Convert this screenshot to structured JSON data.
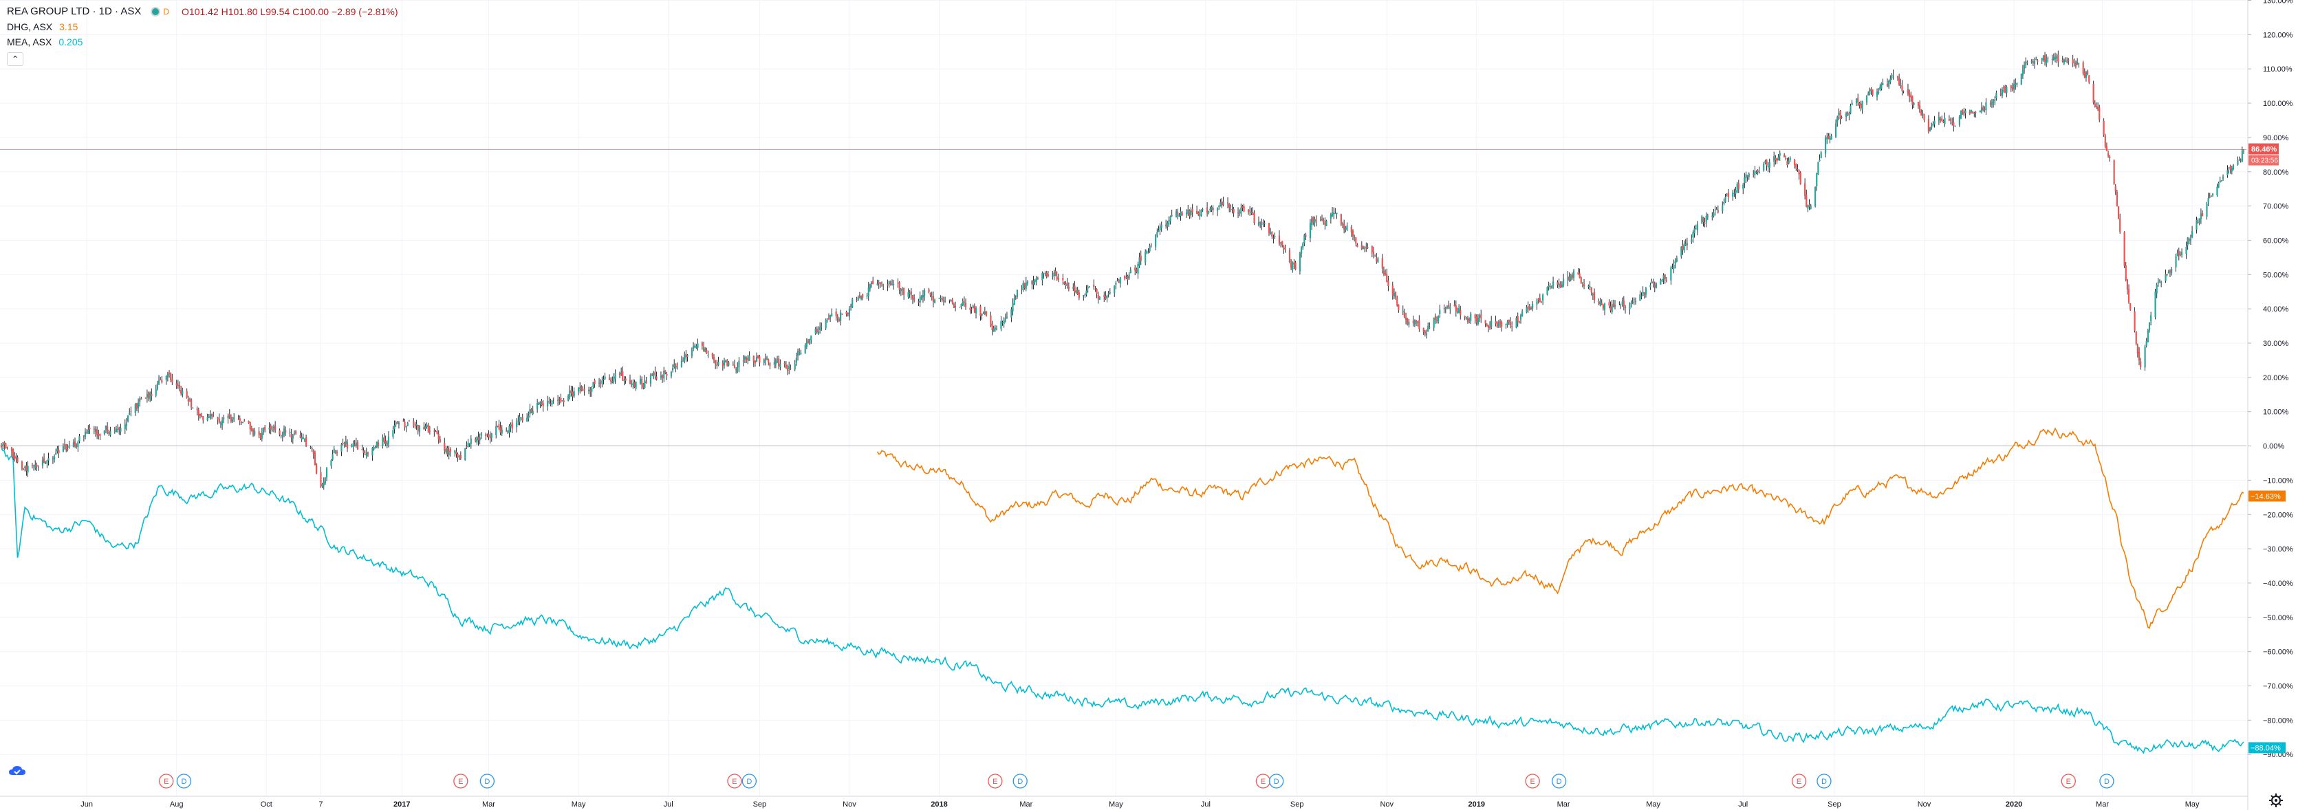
{
  "legend": {
    "main": {
      "title": "REA GROUP LTD · 1D · ASX",
      "badge": "D",
      "ohlc": "O101.42  H101.80  L99.54  C100.00  −2.89 (−2.81%)"
    },
    "series": [
      {
        "symbol": "DHG, ASX",
        "value": "3.15",
        "color": "#f57c00"
      },
      {
        "symbol": "MEA, ASX",
        "value": "0.205",
        "color": "#00bcd4"
      }
    ],
    "collapse_glyph": "⌃"
  },
  "colors": {
    "up": "#26a69a",
    "down": "#ef5350",
    "wick": "#131722",
    "orange": "#f57c00",
    "cyan": "#00bcd4",
    "price_line": "#ef5350",
    "grid": "#f0f3fa"
  },
  "chart_data": {
    "type": "line",
    "ylim": [
      -100,
      130
    ],
    "y_ticks": [
      {
        "value": 130,
        "label": "130.00%"
      },
      {
        "value": 120,
        "label": "120.00%"
      },
      {
        "value": 110,
        "label": "110.00%"
      },
      {
        "value": 100,
        "label": "100.00%"
      },
      {
        "value": 90,
        "label": "90.00%"
      },
      {
        "value": 80,
        "label": "80.00%"
      },
      {
        "value": 70,
        "label": "70.00%"
      },
      {
        "value": 60,
        "label": "60.00%"
      },
      {
        "value": 50,
        "label": "50.00%"
      },
      {
        "value": 40,
        "label": "40.00%"
      },
      {
        "value": 30,
        "label": "30.00%"
      },
      {
        "value": 20,
        "label": "20.00%"
      },
      {
        "value": 10,
        "label": "10.00%"
      },
      {
        "value": 0,
        "label": "0.00%"
      },
      {
        "value": -10,
        "label": "−10.00%"
      },
      {
        "value": -20,
        "label": "−20.00%"
      },
      {
        "value": -30,
        "label": "−30.00%"
      },
      {
        "value": -40,
        "label": "−40.00%"
      },
      {
        "value": -50,
        "label": "−50.00%"
      },
      {
        "value": -60,
        "label": "−60.00%"
      },
      {
        "value": -70,
        "label": "−70.00%"
      },
      {
        "value": -80,
        "label": "−80.00%"
      },
      {
        "value": -90,
        "label": "−90.00%"
      }
    ],
    "x_range": [
      "2016-04-04",
      "2020-06-05"
    ],
    "x_ticks": [
      {
        "date": "2016-06-01",
        "label": "Jun"
      },
      {
        "date": "2016-08-01",
        "label": "Aug"
      },
      {
        "date": "2016-10-01",
        "label": "Oct"
      },
      {
        "date": "2016-11-07",
        "label": "7"
      },
      {
        "date": "2017-01-01",
        "label": "2017"
      },
      {
        "date": "2017-03-01",
        "label": "Mar"
      },
      {
        "date": "2017-05-01",
        "label": "May"
      },
      {
        "date": "2017-07-01",
        "label": "Jul"
      },
      {
        "date": "2017-09-01",
        "label": "Sep"
      },
      {
        "date": "2017-11-01",
        "label": "Nov"
      },
      {
        "date": "2018-01-01",
        "label": "2018"
      },
      {
        "date": "2018-03-01",
        "label": "Mar"
      },
      {
        "date": "2018-05-01",
        "label": "May"
      },
      {
        "date": "2018-07-01",
        "label": "Jul"
      },
      {
        "date": "2018-09-01",
        "label": "Sep"
      },
      {
        "date": "2018-11-01",
        "label": "Nov"
      },
      {
        "date": "2019-01-01",
        "label": "2019"
      },
      {
        "date": "2019-03-01",
        "label": "Mar"
      },
      {
        "date": "2019-05-01",
        "label": "May"
      },
      {
        "date": "2019-07-01",
        "label": "Jul"
      },
      {
        "date": "2019-09-01",
        "label": "Sep"
      },
      {
        "date": "2019-11-01",
        "label": "Nov"
      },
      {
        "date": "2020-01-01",
        "label": "2020"
      },
      {
        "date": "2020-03-01",
        "label": "Mar"
      },
      {
        "date": "2020-05-01",
        "label": "May"
      }
    ],
    "main_series": {
      "name": "REA",
      "style": "candlestick",
      "points": [
        [
          "2016-04-04",
          0
        ],
        [
          "2016-04-25",
          -7
        ],
        [
          "2016-05-10",
          -3
        ],
        [
          "2016-06-01",
          3
        ],
        [
          "2016-06-20",
          5
        ],
        [
          "2016-07-10",
          13
        ],
        [
          "2016-07-29",
          20
        ],
        [
          "2016-08-10",
          12
        ],
        [
          "2016-09-01",
          7
        ],
        [
          "2016-09-25",
          4
        ],
        [
          "2016-10-15",
          5
        ],
        [
          "2016-11-01",
          -3
        ],
        [
          "2016-11-07",
          -10
        ],
        [
          "2016-11-20",
          0
        ],
        [
          "2016-12-10",
          -2
        ],
        [
          "2016-12-30",
          6
        ],
        [
          "2017-01-20",
          4
        ],
        [
          "2017-02-05",
          -3
        ],
        [
          "2017-02-25",
          3
        ],
        [
          "2017-03-20",
          7
        ],
        [
          "2017-04-10",
          13
        ],
        [
          "2017-05-01",
          17
        ],
        [
          "2017-05-20",
          20
        ],
        [
          "2017-06-10",
          18
        ],
        [
          "2017-07-01",
          22
        ],
        [
          "2017-07-20",
          29
        ],
        [
          "2017-08-10",
          24
        ],
        [
          "2017-08-25",
          26
        ],
        [
          "2017-09-20",
          23
        ],
        [
          "2017-10-10",
          33
        ],
        [
          "2017-10-30",
          40
        ],
        [
          "2017-11-20",
          48
        ],
        [
          "2017-12-10",
          45
        ],
        [
          "2018-01-05",
          43
        ],
        [
          "2018-01-25",
          40
        ],
        [
          "2018-02-10",
          34
        ],
        [
          "2018-02-25",
          46
        ],
        [
          "2018-03-15",
          50
        ],
        [
          "2018-04-05",
          45
        ],
        [
          "2018-04-25",
          44
        ],
        [
          "2018-05-15",
          53
        ],
        [
          "2018-06-05",
          65
        ],
        [
          "2018-06-25",
          68
        ],
        [
          "2018-07-15",
          72
        ],
        [
          "2018-08-01",
          66
        ],
        [
          "2018-08-20",
          60
        ],
        [
          "2018-08-31",
          52
        ],
        [
          "2018-09-10",
          65
        ],
        [
          "2018-09-25",
          68
        ],
        [
          "2018-10-10",
          60
        ],
        [
          "2018-10-25",
          55
        ],
        [
          "2018-11-10",
          40
        ],
        [
          "2018-11-25",
          33
        ],
        [
          "2018-12-10",
          40
        ],
        [
          "2018-12-25",
          38
        ],
        [
          "2019-01-10",
          36
        ],
        [
          "2019-01-25",
          36
        ],
        [
          "2019-02-10",
          42
        ],
        [
          "2019-02-25",
          47
        ],
        [
          "2019-03-10",
          51
        ],
        [
          "2019-03-25",
          42
        ],
        [
          "2019-04-10",
          40
        ],
        [
          "2019-04-25",
          45
        ],
        [
          "2019-05-10",
          50
        ],
        [
          "2019-05-25",
          60
        ],
        [
          "2019-06-10",
          68
        ],
        [
          "2019-06-25",
          75
        ],
        [
          "2019-07-10",
          80
        ],
        [
          "2019-07-25",
          85
        ],
        [
          "2019-08-05",
          82
        ],
        [
          "2019-08-15",
          68
        ],
        [
          "2019-08-25",
          90
        ],
        [
          "2019-09-10",
          98
        ],
        [
          "2019-09-25",
          102
        ],
        [
          "2019-10-10",
          106
        ],
        [
          "2019-10-25",
          100
        ],
        [
          "2019-11-05",
          92
        ],
        [
          "2019-11-20",
          95
        ],
        [
          "2019-12-05",
          98
        ],
        [
          "2019-12-25",
          103
        ],
        [
          "2020-01-10",
          110
        ],
        [
          "2020-01-25",
          112
        ],
        [
          "2020-02-10",
          113
        ],
        [
          "2020-02-20",
          108
        ],
        [
          "2020-03-01",
          92
        ],
        [
          "2020-03-10",
          75
        ],
        [
          "2020-03-20",
          40
        ],
        [
          "2020-03-27",
          22
        ],
        [
          "2020-04-05",
          45
        ],
        [
          "2020-04-20",
          55
        ],
        [
          "2020-05-05",
          65
        ],
        [
          "2020-05-20",
          78
        ],
        [
          "2020-06-05",
          86.46
        ]
      ]
    },
    "series": [
      {
        "name": "DHG",
        "color": "#f57c00",
        "last_label": "−14.63%",
        "points": [
          [
            "2017-11-20",
            -2
          ],
          [
            "2017-12-10",
            -6
          ],
          [
            "2018-01-05",
            -8
          ],
          [
            "2018-01-20",
            -12
          ],
          [
            "2018-02-05",
            -22
          ],
          [
            "2018-02-20",
            -18
          ],
          [
            "2018-03-10",
            -17
          ],
          [
            "2018-03-25",
            -14
          ],
          [
            "2018-04-10",
            -17
          ],
          [
            "2018-04-25",
            -14
          ],
          [
            "2018-05-10",
            -16
          ],
          [
            "2018-05-25",
            -10
          ],
          [
            "2018-06-10",
            -13
          ],
          [
            "2018-06-25",
            -14
          ],
          [
            "2018-07-10",
            -13
          ],
          [
            "2018-07-25",
            -15
          ],
          [
            "2018-08-10",
            -10
          ],
          [
            "2018-08-25",
            -6
          ],
          [
            "2018-09-10",
            -5
          ],
          [
            "2018-09-25",
            -4
          ],
          [
            "2018-10-10",
            -6
          ],
          [
            "2018-10-25",
            -18
          ],
          [
            "2018-11-10",
            -30
          ],
          [
            "2018-11-25",
            -34
          ],
          [
            "2018-12-10",
            -33
          ],
          [
            "2018-12-25",
            -35
          ],
          [
            "2019-01-10",
            -40
          ],
          [
            "2019-01-25",
            -40
          ],
          [
            "2019-02-10",
            -38
          ],
          [
            "2019-02-25",
            -42
          ],
          [
            "2019-03-10",
            -30
          ],
          [
            "2019-03-25",
            -27
          ],
          [
            "2019-04-10",
            -30
          ],
          [
            "2019-04-25",
            -25
          ],
          [
            "2019-05-10",
            -20
          ],
          [
            "2019-05-25",
            -15
          ],
          [
            "2019-06-10",
            -13
          ],
          [
            "2019-06-25",
            -12
          ],
          [
            "2019-07-10",
            -14
          ],
          [
            "2019-07-25",
            -16
          ],
          [
            "2019-08-10",
            -20
          ],
          [
            "2019-08-25",
            -22
          ],
          [
            "2019-09-10",
            -14
          ],
          [
            "2019-09-25",
            -13
          ],
          [
            "2019-10-10",
            -10
          ],
          [
            "2019-10-25",
            -12
          ],
          [
            "2019-11-10",
            -14
          ],
          [
            "2019-11-25",
            -10
          ],
          [
            "2019-12-10",
            -5
          ],
          [
            "2019-12-25",
            -3
          ],
          [
            "2020-01-10",
            2
          ],
          [
            "2020-01-25",
            5
          ],
          [
            "2020-02-10",
            3
          ],
          [
            "2020-02-25",
            0
          ],
          [
            "2020-03-10",
            -20
          ],
          [
            "2020-03-20",
            -40
          ],
          [
            "2020-04-01",
            -52
          ],
          [
            "2020-04-15",
            -45
          ],
          [
            "2020-05-01",
            -35
          ],
          [
            "2020-05-15",
            -25
          ],
          [
            "2020-06-05",
            -14.63
          ]
        ]
      },
      {
        "name": "MEA",
        "color": "#00bcd4",
        "last_label": "−88.04%",
        "points": [
          [
            "2016-04-04",
            0
          ],
          [
            "2016-04-12",
            -5
          ],
          [
            "2016-04-15",
            -34
          ],
          [
            "2016-04-20",
            -18
          ],
          [
            "2016-05-10",
            -25
          ],
          [
            "2016-06-01",
            -22
          ],
          [
            "2016-06-20",
            -30
          ],
          [
            "2016-07-05",
            -28
          ],
          [
            "2016-07-20",
            -12
          ],
          [
            "2016-08-10",
            -15
          ],
          [
            "2016-09-01",
            -13
          ],
          [
            "2016-09-20",
            -12
          ],
          [
            "2016-10-10",
            -15
          ],
          [
            "2016-11-01",
            -22
          ],
          [
            "2016-11-20",
            -30
          ],
          [
            "2016-12-10",
            -33
          ],
          [
            "2017-01-01",
            -37
          ],
          [
            "2017-01-20",
            -40
          ],
          [
            "2017-02-10",
            -50
          ],
          [
            "2017-03-01",
            -53
          ],
          [
            "2017-03-20",
            -51
          ],
          [
            "2017-04-10",
            -51
          ],
          [
            "2017-05-01",
            -55
          ],
          [
            "2017-05-20",
            -57
          ],
          [
            "2017-06-10",
            -58
          ],
          [
            "2017-07-01",
            -55
          ],
          [
            "2017-07-20",
            -48
          ],
          [
            "2017-08-10",
            -42
          ],
          [
            "2017-08-25",
            -48
          ],
          [
            "2017-09-10",
            -52
          ],
          [
            "2017-10-01",
            -56
          ],
          [
            "2017-10-25",
            -58
          ],
          [
            "2017-11-20",
            -60
          ],
          [
            "2017-12-20",
            -62
          ],
          [
            "2018-01-20",
            -64
          ],
          [
            "2018-02-10",
            -70
          ],
          [
            "2018-03-10",
            -72
          ],
          [
            "2018-04-10",
            -74
          ],
          [
            "2018-05-10",
            -76
          ],
          [
            "2018-06-10",
            -74
          ],
          [
            "2018-07-01",
            -73
          ],
          [
            "2018-08-01",
            -74
          ],
          [
            "2018-09-01",
            -72
          ],
          [
            "2018-10-01",
            -74
          ],
          [
            "2018-11-01",
            -76
          ],
          [
            "2018-12-01",
            -78
          ],
          [
            "2019-01-01",
            -80
          ],
          [
            "2019-02-01",
            -81
          ],
          [
            "2019-03-01",
            -81
          ],
          [
            "2019-04-01",
            -83
          ],
          [
            "2019-05-01",
            -82
          ],
          [
            "2019-06-01",
            -80
          ],
          [
            "2019-07-01",
            -82
          ],
          [
            "2019-08-01",
            -85
          ],
          [
            "2019-09-01",
            -84
          ],
          [
            "2019-10-01",
            -83
          ],
          [
            "2019-11-01",
            -82
          ],
          [
            "2019-12-01",
            -75
          ],
          [
            "2020-01-01",
            -76
          ],
          [
            "2020-02-01",
            -77
          ],
          [
            "2020-02-20",
            -78
          ],
          [
            "2020-03-10",
            -86
          ],
          [
            "2020-03-25",
            -89
          ],
          [
            "2020-04-15",
            -87
          ],
          [
            "2020-05-10",
            -88
          ],
          [
            "2020-06-05",
            -88.04
          ]
        ]
      }
    ],
    "price_line": {
      "value": 86.46,
      "label": "86.46%",
      "sub_label": "03:23:56"
    },
    "events": [
      {
        "date": "2016-07-25",
        "label": "E"
      },
      {
        "date": "2016-08-06",
        "label": "D"
      },
      {
        "date": "2017-02-10",
        "label": "E"
      },
      {
        "date": "2017-02-28",
        "label": "D"
      },
      {
        "date": "2017-08-15",
        "label": "E"
      },
      {
        "date": "2017-08-25",
        "label": "D"
      },
      {
        "date": "2018-02-08",
        "label": "E"
      },
      {
        "date": "2018-02-25",
        "label": "D"
      },
      {
        "date": "2018-08-09",
        "label": "E"
      },
      {
        "date": "2018-08-18",
        "label": "D"
      },
      {
        "date": "2019-02-08",
        "label": "E"
      },
      {
        "date": "2019-02-26",
        "label": "D"
      },
      {
        "date": "2019-08-08",
        "label": "E"
      },
      {
        "date": "2019-08-25",
        "label": "D"
      },
      {
        "date": "2020-02-07",
        "label": "E"
      },
      {
        "date": "2020-03-04",
        "label": "D"
      }
    ]
  }
}
